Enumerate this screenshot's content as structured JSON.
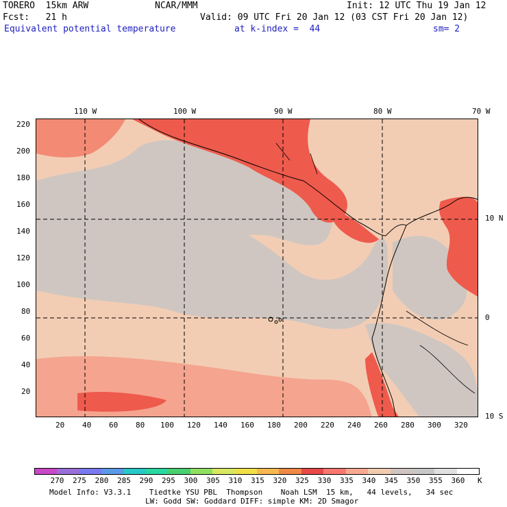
{
  "header": {
    "model": "TORERO  15km ARW",
    "center": "NCAR/MMM",
    "init": "Init: 12 UTC Thu 19 Jan 12",
    "fcst": "Fcst:   21 h",
    "valid": "Valid: 09 UTC Fri 20 Jan 12 (03 CST Fri 20 Jan 12)",
    "field": "Equivalent potential temperature",
    "level": "at k-index =  44",
    "smoothing": "sm= 2"
  },
  "axes": {
    "top_lon": [
      "110 W",
      "100 W",
      "90 W",
      "80 W",
      "70 W"
    ],
    "right_lat": [
      "10 N",
      "0",
      "10 S"
    ],
    "left_ticks": [
      "220",
      "200",
      "180",
      "160",
      "140",
      "120",
      "100",
      "80",
      "60",
      "40",
      "20"
    ],
    "bottom_ticks": [
      "20",
      "40",
      "60",
      "80",
      "100",
      "120",
      "140",
      "160",
      "180",
      "200",
      "220",
      "240",
      "260",
      "280",
      "300",
      "320"
    ]
  },
  "colorbar": {
    "labels": [
      "270",
      "275",
      "280",
      "285",
      "290",
      "295",
      "300",
      "305",
      "310",
      "315",
      "320",
      "325",
      "330",
      "335",
      "340",
      "345",
      "350",
      "355",
      "360"
    ],
    "unit": "K",
    "colors": [
      "#c848c8",
      "#9a6ed8",
      "#7a7af0",
      "#5a9ae8",
      "#28c8c8",
      "#28d8a0",
      "#48d070",
      "#90e060",
      "#d8e860",
      "#f0e048",
      "#f8b850",
      "#f08848",
      "#e84848",
      "#f87870",
      "#f8a890",
      "#f0cbb0",
      "#d0c4c0",
      "#c8c8c8",
      "#e0e0e0",
      "#ffffff"
    ]
  },
  "footer": {
    "line1": "Model Info: V3.3.1    Tiedtke YSU PBL  Thompson    Noah LSM  15 km,   44 levels,   34 sec",
    "line2": "LW: Godd SW: Goddard DIFF: simple KM: 2D Smagor"
  }
}
